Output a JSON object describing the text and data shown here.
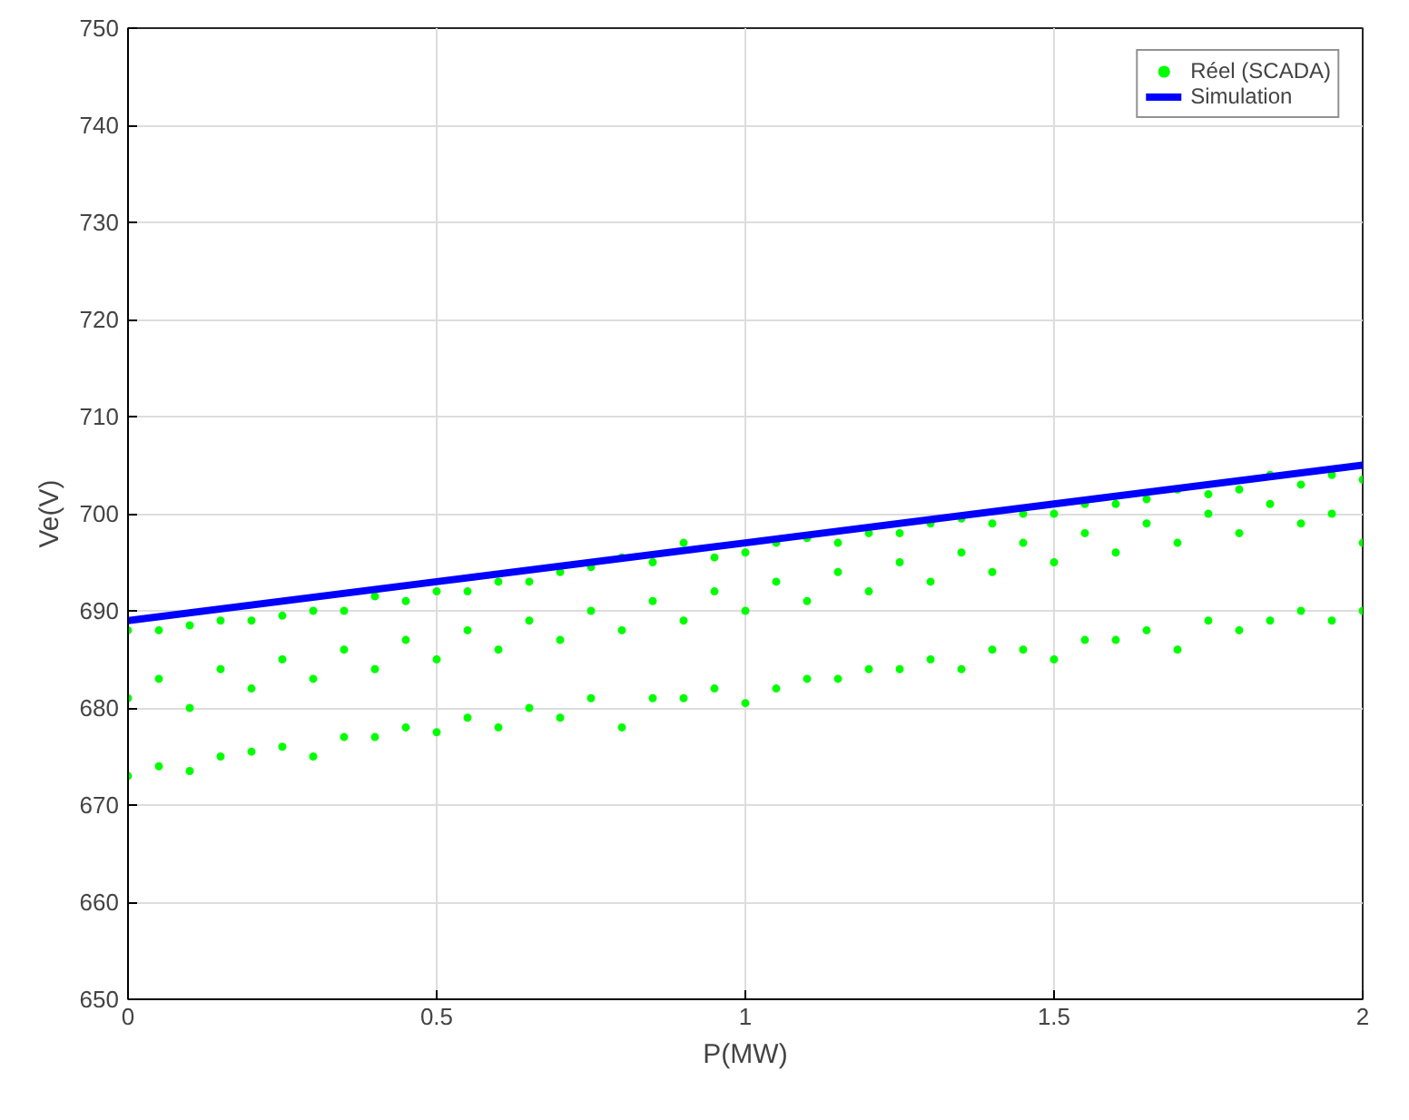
{
  "chart_data": {
    "type": "scatter",
    "xlabel": "P(MW)",
    "ylabel": "Ve(V)",
    "xlim": [
      0,
      2
    ],
    "ylim": [
      650,
      750
    ],
    "xticks": [
      0,
      0.5,
      1,
      1.5,
      2
    ],
    "yticks": [
      650,
      660,
      670,
      680,
      690,
      700,
      710,
      720,
      730,
      740,
      750
    ],
    "grid": true,
    "legend": "top right",
    "series": [
      {
        "name": "Réel (SCADA)",
        "color": "#00ff00",
        "x": [
          0,
          0,
          0,
          0.05,
          0.05,
          0.05,
          0.1,
          0.1,
          0.1,
          0.15,
          0.15,
          0.15,
          0.2,
          0.2,
          0.2,
          0.25,
          0.25,
          0.25,
          0.3,
          0.3,
          0.3,
          0.35,
          0.35,
          0.35,
          0.4,
          0.4,
          0.4,
          0.45,
          0.45,
          0.45,
          0.5,
          0.5,
          0.5,
          0.55,
          0.55,
          0.55,
          0.6,
          0.6,
          0.6,
          0.65,
          0.65,
          0.65,
          0.7,
          0.7,
          0.7,
          0.75,
          0.75,
          0.75,
          0.8,
          0.8,
          0.8,
          0.85,
          0.85,
          0.85,
          0.9,
          0.9,
          0.9,
          0.95,
          0.95,
          0.95,
          1.0,
          1.0,
          1.0,
          1.05,
          1.05,
          1.05,
          1.1,
          1.1,
          1.1,
          1.15,
          1.15,
          1.15,
          1.2,
          1.2,
          1.2,
          1.25,
          1.25,
          1.25,
          1.3,
          1.3,
          1.3,
          1.35,
          1.35,
          1.35,
          1.4,
          1.4,
          1.4,
          1.45,
          1.45,
          1.45,
          1.5,
          1.5,
          1.5,
          1.55,
          1.55,
          1.55,
          1.6,
          1.6,
          1.6,
          1.65,
          1.65,
          1.65,
          1.7,
          1.7,
          1.7,
          1.75,
          1.75,
          1.75,
          1.8,
          1.8,
          1.8,
          1.85,
          1.85,
          1.85,
          1.9,
          1.9,
          1.9,
          1.95,
          1.95,
          1.95,
          2.0,
          2.0,
          2.0
        ],
        "values": [
          673,
          681,
          688,
          674,
          683,
          688,
          673.5,
          680,
          688.5,
          675,
          684,
          689,
          675.5,
          682,
          689,
          676,
          685,
          689.5,
          675,
          683,
          690,
          677,
          686,
          690,
          677,
          684,
          691.5,
          678,
          687,
          691,
          677.5,
          685,
          692,
          679,
          688,
          692,
          678,
          686,
          693,
          680,
          689,
          693,
          679,
          687,
          694,
          681,
          690,
          694.5,
          678,
          688,
          695.5,
          681,
          691,
          695,
          681,
          689,
          697,
          682,
          692,
          695.5,
          680.5,
          690,
          696,
          682,
          693,
          697,
          683,
          691,
          697.5,
          683,
          694,
          697,
          684,
          692,
          698,
          684,
          695,
          698,
          685,
          693,
          699,
          684,
          696,
          699.5,
          686,
          694,
          699,
          686,
          697,
          700,
          685,
          695,
          700,
          687,
          698,
          701,
          687,
          696,
          701,
          688,
          699,
          701.5,
          686,
          697,
          702.5,
          689,
          700,
          702,
          688,
          698,
          702.5,
          689,
          701,
          704,
          690,
          699,
          703,
          689,
          700,
          704,
          690,
          697,
          703.5
        ]
      },
      {
        "type": "line",
        "name": "Simulation",
        "color": "#0000ff",
        "x": [
          0,
          0.5,
          1,
          1.5,
          2
        ],
        "values": [
          689,
          693,
          697,
          701,
          705
        ]
      }
    ]
  }
}
